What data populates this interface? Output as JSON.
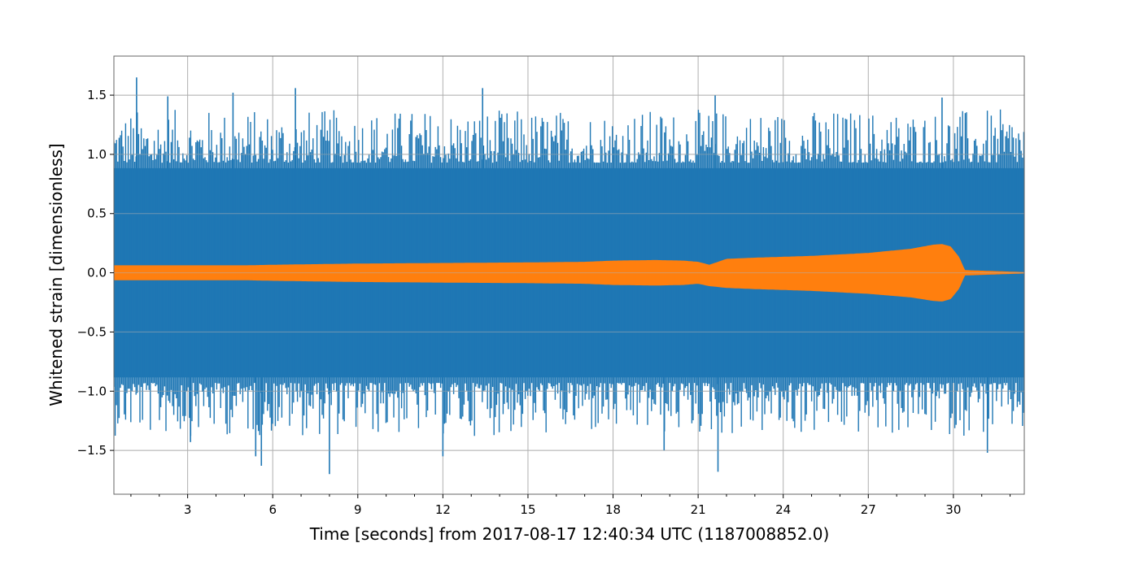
{
  "chart_data": {
    "type": "line",
    "xlabel": "Time [seconds] from 2017-08-17 12:40:34 UTC (1187008852.0)",
    "ylabel": "Whitened strain [dimensionless]",
    "xlim": [
      0.4,
      32.5
    ],
    "ylim": [
      -1.87,
      1.83
    ],
    "grid": true,
    "x_ticks": [
      3,
      6,
      9,
      12,
      15,
      18,
      21,
      24,
      27,
      30
    ],
    "x_tick_labels": [
      "3",
      "6",
      "9",
      "12",
      "15",
      "18",
      "21",
      "24",
      "27",
      "30"
    ],
    "y_ticks": [
      1.5,
      1.0,
      0.5,
      0.0,
      -0.5,
      -1.0,
      -1.5
    ],
    "y_tick_labels": [
      "1.5",
      "1.0",
      "0.5",
      "0.0",
      "−0.5",
      "−1.0",
      "−1.5"
    ],
    "series": [
      {
        "color": "#1f77b4",
        "envelope_x": [
          0.4,
          32.5
        ],
        "envelope_upper": [
          0.93,
          0.93
        ],
        "envelope_lower": [
          -0.93,
          -0.93
        ],
        "peaks": [
          {
            "x": 1.2,
            "y": 1.65
          },
          {
            "x": 2.3,
            "y": 1.49
          },
          {
            "x": 4.6,
            "y": 1.52
          },
          {
            "x": 6.8,
            "y": 1.56
          },
          {
            "x": 13.4,
            "y": 1.56
          },
          {
            "x": 21.6,
            "y": 1.5
          },
          {
            "x": 29.6,
            "y": 1.48
          },
          {
            "x": 5.4,
            "y": -1.55
          },
          {
            "x": 5.6,
            "y": -1.63
          },
          {
            "x": 8.0,
            "y": -1.7
          },
          {
            "x": 12.0,
            "y": -1.55
          },
          {
            "x": 19.8,
            "y": -1.5
          },
          {
            "x": 21.7,
            "y": -1.68
          },
          {
            "x": 31.2,
            "y": -1.52
          },
          {
            "x": 3.1,
            "y": -1.43
          }
        ]
      },
      {
        "color": "#ff7f0e",
        "envelope_x": [
          0.4,
          3.0,
          5.0,
          6.0,
          9.0,
          12.0,
          15.0,
          17.0,
          18.0,
          19.5,
          20.5,
          21.0,
          21.4,
          22.0,
          23.0,
          25.0,
          27.0,
          28.5,
          29.3,
          29.6,
          29.9,
          30.2,
          30.4,
          32.5
        ],
        "envelope_upper": [
          0.06,
          0.06,
          0.06,
          0.065,
          0.075,
          0.08,
          0.085,
          0.09,
          0.1,
          0.105,
          0.1,
          0.09,
          0.065,
          0.115,
          0.125,
          0.14,
          0.165,
          0.2,
          0.235,
          0.24,
          0.22,
          0.13,
          0.02,
          0.003
        ],
        "envelope_lower": [
          -0.06,
          -0.06,
          -0.06,
          -0.065,
          -0.075,
          -0.08,
          -0.085,
          -0.09,
          -0.1,
          -0.105,
          -0.1,
          -0.09,
          -0.11,
          -0.125,
          -0.135,
          -0.15,
          -0.175,
          -0.205,
          -0.235,
          -0.24,
          -0.22,
          -0.13,
          -0.02,
          -0.003
        ]
      }
    ]
  }
}
